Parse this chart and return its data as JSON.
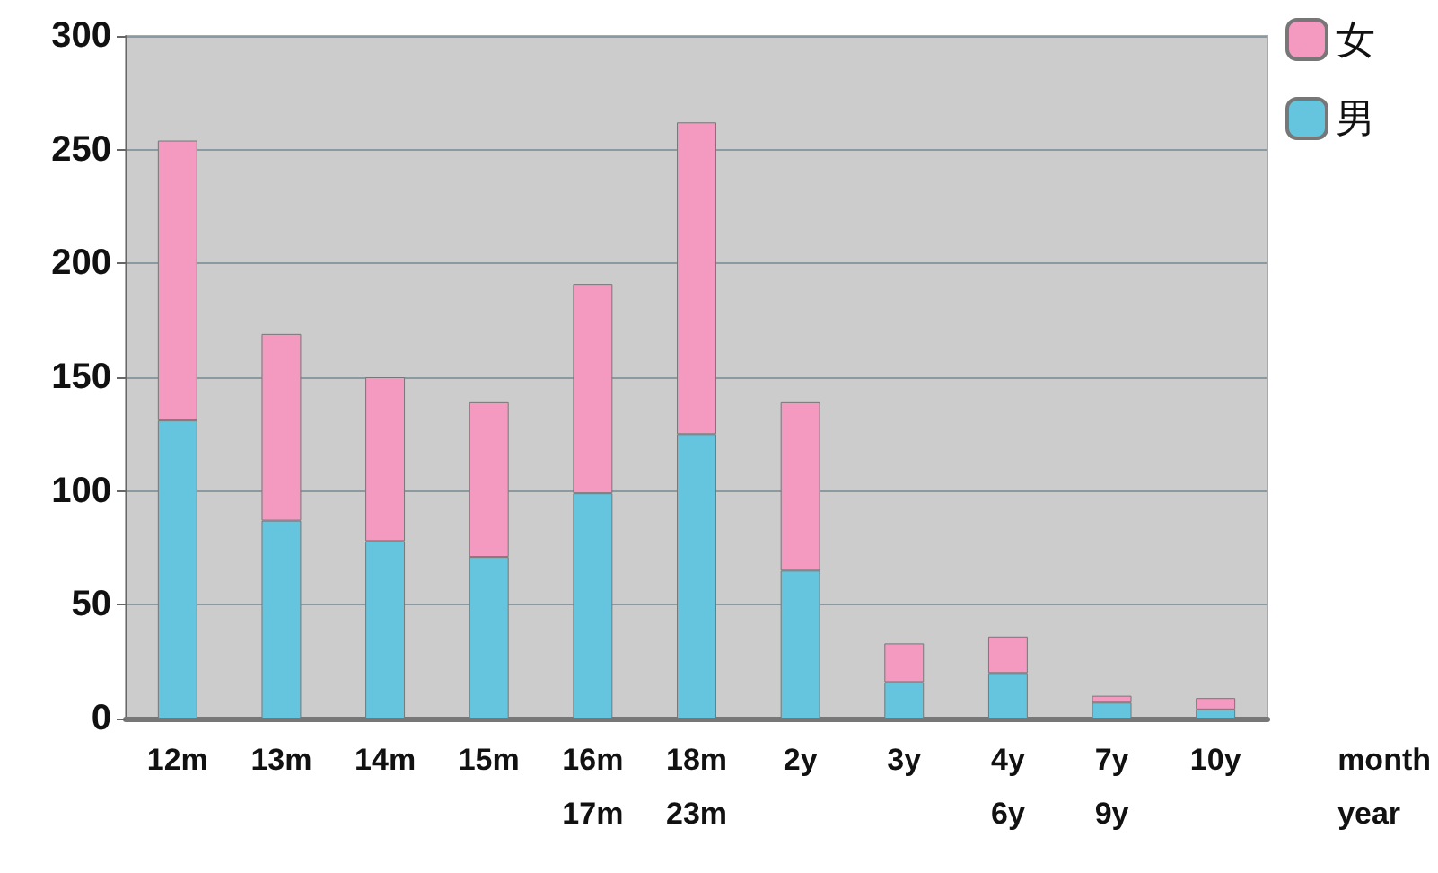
{
  "chart_data": {
    "type": "bar",
    "stacked": true,
    "categories": [
      "12m",
      "13m",
      "14m",
      "15m",
      "16m\n17m",
      "18m\n23m",
      "2y",
      "3y",
      "4y\n6y",
      "7y\n9y",
      "10y"
    ],
    "series": [
      {
        "name": "男",
        "color": "#66c5de",
        "values": [
          131,
          87,
          78,
          71,
          99,
          125,
          65,
          16,
          20,
          7,
          4
        ]
      },
      {
        "name": "女",
        "color": "#f49ac1",
        "values": [
          123,
          82,
          72,
          68,
          92,
          137,
          74,
          17,
          16,
          3,
          5
        ]
      }
    ],
    "xlabel": "month\nyear",
    "ylim": [
      0,
      300
    ],
    "yticks": [
      0,
      50,
      100,
      150,
      200,
      250,
      300
    ],
    "grid": "y",
    "legend": "top right"
  }
}
